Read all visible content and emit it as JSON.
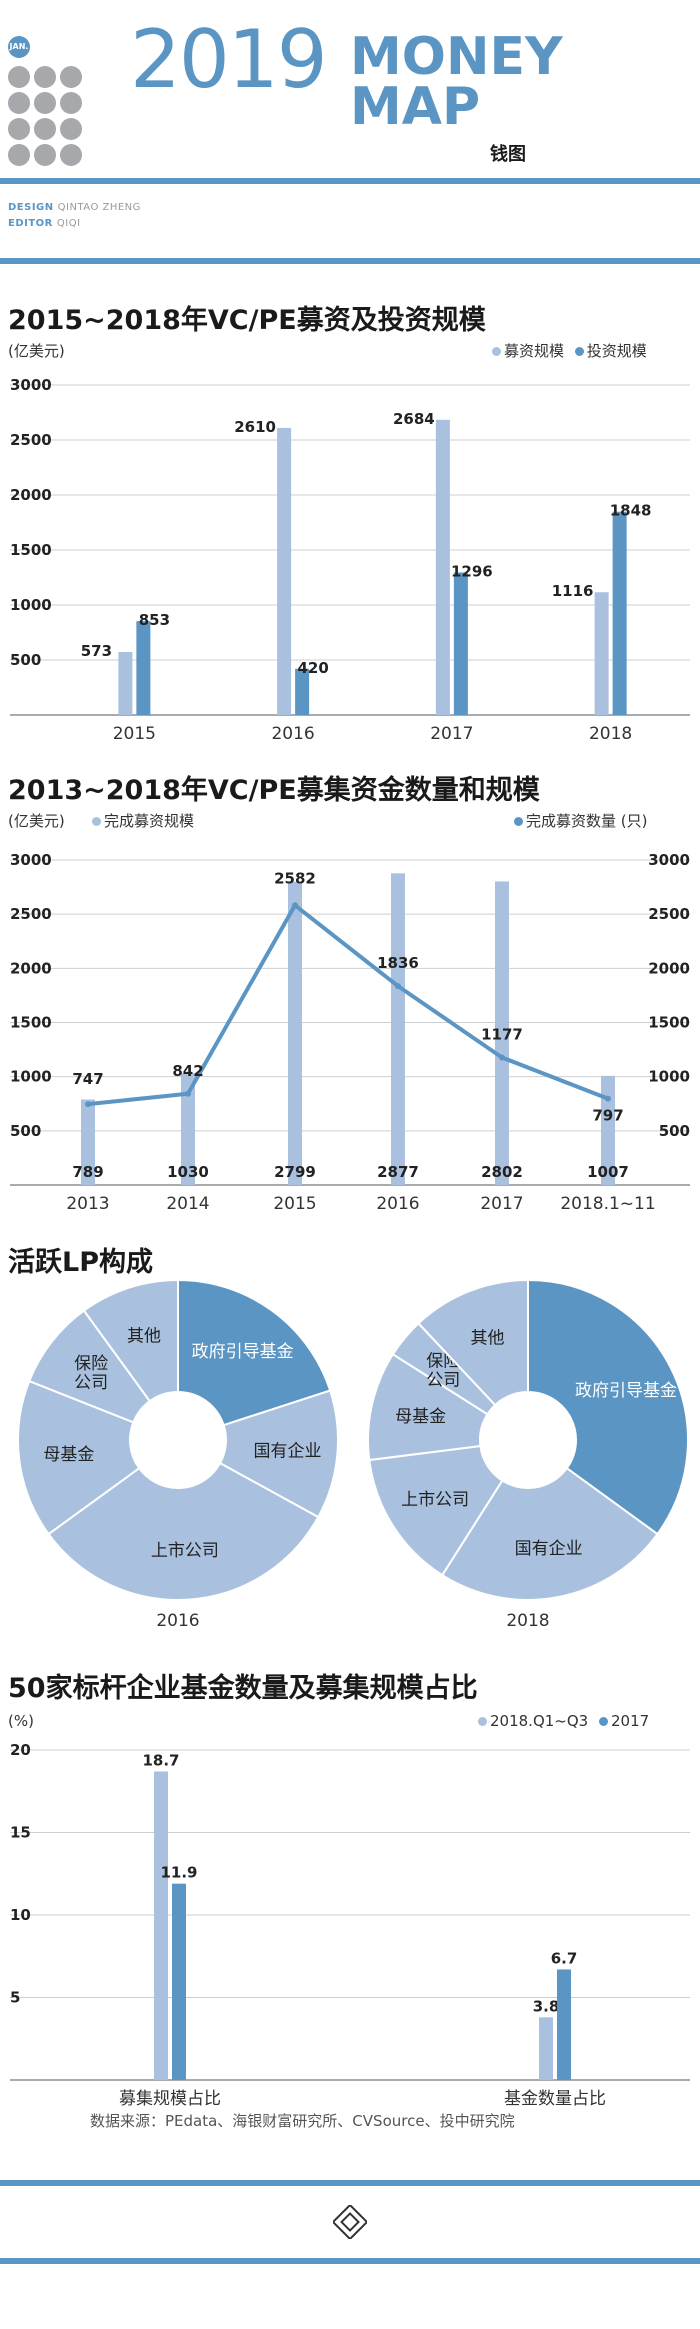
{
  "header": {
    "badge": "JAN.",
    "year": "2019",
    "title_line1": "MONEY",
    "title_line2": "MAP",
    "subtitle": "钱图",
    "design_label": "DESIGN",
    "design_name": "QINTAO ZHENG",
    "editor_label": "EDITOR",
    "editor_name": "QIQI"
  },
  "colors": {
    "light": "#a9c1de",
    "dark": "#5b95c3",
    "accent": "#5b95c3",
    "grid": "#cfcfcf"
  },
  "sections": {
    "s1_title": "2015~2018年VC/PE募资及投资规模",
    "s1_unit": "(亿美元)",
    "s2_title": "2013~2018年VC/PE募集资金数量和规模",
    "s2_unit": "(亿美元)",
    "s3_title": "活跃LP构成",
    "s4_title": "50家标杆企业基金数量及募集规模占比",
    "s4_unit": "(%)",
    "source": "数据来源：PEdata、海银财富研究所、CVSource、投中研究院"
  },
  "chart_data": [
    {
      "type": "bar",
      "title": "2015~2018年VC/PE募资及投资规模",
      "ylabel": "(亿美元)",
      "categories": [
        "2015",
        "2016",
        "2017",
        "2018"
      ],
      "series": [
        {
          "name": "募资规模",
          "values": [
            573,
            2610,
            2684,
            1116
          ],
          "color": "#a9c1de"
        },
        {
          "name": "投资规模",
          "values": [
            853,
            420,
            1296,
            1848
          ],
          "color": "#5b95c3"
        }
      ],
      "ylim": [
        0,
        3000
      ],
      "yticks": [
        "500",
        "1000",
        "1500",
        "2000",
        "2500",
        "3000"
      ],
      "legend": "top-right"
    },
    {
      "type": "bar",
      "title": "2013~2018年VC/PE募集资金数量和规模",
      "ylabel": "(亿美元)",
      "categories": [
        "2013",
        "2014",
        "2015",
        "2016",
        "2017",
        "2018.1~11"
      ],
      "series": [
        {
          "name": "完成募资规模",
          "values": [
            789,
            1030,
            2799,
            2877,
            2802,
            1007
          ],
          "color": "#a9c1de"
        },
        {
          "name": "完成募资数量 (只)",
          "values": [
            747,
            842,
            2582,
            1836,
            1177,
            797
          ],
          "color": "#5b95c3",
          "kind": "line"
        }
      ],
      "ylim": [
        0,
        3000
      ],
      "yticks": [
        "500",
        "1000",
        "1500",
        "2000",
        "2500",
        "3000"
      ],
      "legend_left": "完成募资规模",
      "legend_right": "完成募资数量 (只)"
    },
    {
      "type": "pie",
      "title": "活跃LP构成",
      "charts": [
        {
          "label": "2016",
          "slices": [
            {
              "name": "政府引导基金",
              "value": 20,
              "dark": true
            },
            {
              "name": "国有企业",
              "value": 13,
              "dark": false
            },
            {
              "name": "上市公司",
              "value": 32,
              "dark": false
            },
            {
              "name": "母基金",
              "value": 16,
              "dark": false
            },
            {
              "name": "保险\n公司",
              "value": 9,
              "dark": false
            },
            {
              "name": "其他",
              "value": 10,
              "dark": false
            }
          ]
        },
        {
          "label": "2018",
          "slices": [
            {
              "name": "政府引导基金",
              "value": 35,
              "dark": true
            },
            {
              "name": "国有企业",
              "value": 24,
              "dark": false
            },
            {
              "name": "上市公司",
              "value": 14,
              "dark": false
            },
            {
              "name": "母基金",
              "value": 11,
              "dark": false
            },
            {
              "name": "保险\n公司",
              "value": 4,
              "dark": false
            },
            {
              "name": "其他",
              "value": 12,
              "dark": false
            }
          ]
        }
      ]
    },
    {
      "type": "bar",
      "title": "50家标杆企业基金数量及募集规模占比",
      "ylabel": "(%)",
      "categories": [
        "募集规模占比",
        "基金数量占比"
      ],
      "series": [
        {
          "name": "2018.Q1~Q3",
          "values": [
            18.7,
            3.8
          ],
          "color": "#a9c1de"
        },
        {
          "name": "2017",
          "values": [
            11.9,
            6.7
          ],
          "color": "#5b95c3"
        }
      ],
      "ylim": [
        0,
        20
      ],
      "yticks": [
        "5",
        "10",
        "15",
        "20"
      ],
      "legend": "top-right"
    }
  ]
}
